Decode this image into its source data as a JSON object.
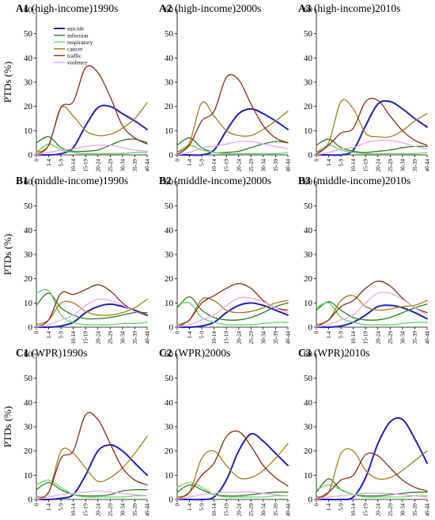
{
  "figure": {
    "x_categories": [
      "0",
      "1-4",
      "5-9",
      "10-14",
      "15-19",
      "20-24",
      "25-29",
      "30-34",
      "35-39",
      "40-44"
    ],
    "ylim": [
      0,
      60
    ],
    "yticks": [
      0,
      10,
      20,
      30,
      40,
      50,
      60
    ],
    "ylabel": "PTDs (%)",
    "series_colors": {
      "suicide": "#1f1fbf",
      "infection": "#2d7d1f",
      "respiratory": "#5fd65f",
      "cancer": "#a37c1a",
      "traffic": "#8b2a1a",
      "violence": "#e6a6e6"
    }
  },
  "chart_data": [
    {
      "type": "line",
      "id": "A1",
      "title_bold": "A1",
      "title": " (high-income)1990s",
      "ylabel": "PTDs (%)",
      "categories": [
        "0",
        "1-4",
        "5-9",
        "10-14",
        "15-19",
        "20-24",
        "25-29",
        "30-34",
        "35-39",
        "40-44"
      ],
      "ylim": [
        0,
        60
      ],
      "legend": "top-left",
      "series": [
        {
          "name": "suicide",
          "values": [
            0,
            0,
            0.5,
            3,
            12,
            19.5,
            20,
            17,
            14,
            10.5
          ]
        },
        {
          "name": "infection",
          "values": [
            5,
            7.5,
            3,
            1.5,
            1.5,
            2,
            4,
            6,
            6.5,
            5
          ]
        },
        {
          "name": "respiratory",
          "values": [
            1,
            4.5,
            2,
            1,
            0.5,
            0.5,
            0.5,
            0.5,
            1,
            1
          ]
        },
        {
          "name": "cancer",
          "values": [
            1,
            4,
            19.5,
            16,
            10,
            8,
            8.5,
            11,
            15,
            21.5
          ]
        },
        {
          "name": "traffic",
          "values": [
            0,
            4,
            19.5,
            22,
            36,
            34,
            24,
            12,
            7,
            4.5
          ]
        },
        {
          "name": "violence",
          "values": [
            0,
            1,
            2,
            2.5,
            3.5,
            4,
            4,
            3,
            2,
            1.5
          ]
        }
      ]
    },
    {
      "type": "line",
      "id": "A2",
      "title_bold": "A2",
      "title": " (high-income)2000s",
      "ylabel": "",
      "categories": [
        "0",
        "1-4",
        "5-9",
        "10-14",
        "15-19",
        "20-24",
        "25-29",
        "30-34",
        "35-39",
        "40-44"
      ],
      "ylim": [
        0,
        60
      ],
      "series": [
        {
          "name": "suicide",
          "values": [
            0,
            0,
            0,
            2,
            10,
            17,
            19,
            17,
            14,
            10.5
          ]
        },
        {
          "name": "infection",
          "values": [
            4,
            7,
            3,
            1,
            1,
            1.5,
            3,
            4.5,
            5.5,
            5
          ]
        },
        {
          "name": "respiratory",
          "values": [
            1,
            4,
            2,
            1,
            0.5,
            0.5,
            0.5,
            0.5,
            0.5,
            1
          ]
        },
        {
          "name": "cancer",
          "values": [
            1,
            5,
            21.5,
            16,
            10,
            8,
            8,
            10.5,
            14,
            18
          ]
        },
        {
          "name": "traffic",
          "values": [
            0,
            4,
            14,
            18,
            32,
            31,
            21,
            12,
            7,
            5
          ]
        },
        {
          "name": "violence",
          "values": [
            0,
            1,
            3,
            3.5,
            4.5,
            5.5,
            5.5,
            4.5,
            3.5,
            2.5
          ]
        }
      ]
    },
    {
      "type": "line",
      "id": "A3",
      "title_bold": "A3",
      "title": " (high-income)2010s",
      "ylabel": "",
      "categories": [
        "0",
        "1-4",
        "5-9",
        "10-14",
        "15-19",
        "20-24",
        "25-29",
        "30-34",
        "35-39",
        "40-44"
      ],
      "ylim": [
        0,
        60
      ],
      "series": [
        {
          "name": "suicide",
          "values": [
            0,
            0,
            0,
            2,
            12,
            21,
            22,
            19,
            15,
            11.5
          ]
        },
        {
          "name": "infection",
          "values": [
            4,
            6.5,
            3,
            1.5,
            1,
            1.5,
            2,
            3,
            3.5,
            3.5
          ]
        },
        {
          "name": "respiratory",
          "values": [
            1,
            4,
            2,
            1,
            0.5,
            0.5,
            0.5,
            0.5,
            0.5,
            1
          ]
        },
        {
          "name": "cancer",
          "values": [
            1,
            5,
            22,
            19,
            9,
            7.5,
            7.5,
            10,
            14,
            17
          ]
        },
        {
          "name": "traffic",
          "values": [
            0,
            4,
            9,
            11,
            22,
            22.5,
            16,
            10,
            6,
            4
          ]
        },
        {
          "name": "violence",
          "values": [
            0,
            1,
            2.5,
            3,
            5,
            6,
            6,
            5,
            3.5,
            2.5
          ]
        }
      ]
    },
    {
      "type": "line",
      "id": "B1",
      "title_bold": "B1",
      "title": " (middle-income)1990s",
      "ylabel": "PTDs (%)",
      "categories": [
        "0",
        "1-4",
        "5-9",
        "10-14",
        "15-19",
        "20-24",
        "25-29",
        "30-34",
        "35-39",
        "40-44"
      ],
      "ylim": [
        0,
        60
      ],
      "series": [
        {
          "name": "suicide",
          "values": [
            0,
            0,
            0.5,
            2,
            6,
            8.5,
            9.5,
            8.5,
            7,
            5
          ]
        },
        {
          "name": "infection",
          "values": [
            9,
            14,
            8,
            5,
            3.5,
            3.5,
            4,
            5,
            6,
            6
          ]
        },
        {
          "name": "respiratory",
          "values": [
            14,
            15,
            5,
            2,
            1,
            1,
            1,
            1.5,
            1.5,
            2
          ]
        },
        {
          "name": "cancer",
          "values": [
            1,
            3,
            10,
            10,
            6.5,
            5,
            5,
            6,
            8,
            11.5
          ]
        },
        {
          "name": "traffic",
          "values": [
            0,
            3,
            14,
            13.5,
            15.5,
            17.5,
            15,
            10,
            6.5,
            5
          ]
        },
        {
          "name": "violence",
          "values": [
            0,
            1,
            3,
            5,
            9,
            11.5,
            11,
            9,
            6.5,
            4.5
          ]
        }
      ]
    },
    {
      "type": "line",
      "id": "B2",
      "title_bold": "B2",
      "title": " (middle-income)2000s",
      "ylabel": "",
      "categories": [
        "0",
        "1-4",
        "5-9",
        "10-14",
        "15-19",
        "20-24",
        "25-29",
        "30-34",
        "35-39",
        "40-44"
      ],
      "ylim": [
        0,
        60
      ],
      "series": [
        {
          "name": "suicide",
          "values": [
            0,
            0,
            0.5,
            2,
            6,
            9,
            10,
            9,
            7,
            5
          ]
        },
        {
          "name": "infection",
          "values": [
            8,
            12.5,
            7,
            4,
            3,
            3,
            4,
            6,
            8.5,
            10
          ]
        },
        {
          "name": "respiratory",
          "values": [
            9,
            10,
            4,
            2,
            1,
            1,
            1,
            1.5,
            2,
            2
          ]
        },
        {
          "name": "cancer",
          "values": [
            1,
            3,
            11.5,
            11,
            7,
            6,
            6.5,
            8,
            10,
            11
          ]
        },
        {
          "name": "traffic",
          "values": [
            0,
            3,
            10,
            13,
            16,
            18,
            16,
            11,
            8,
            7
          ]
        },
        {
          "name": "violence",
          "values": [
            0,
            1,
            3,
            5,
            9,
            12,
            12,
            10.5,
            8,
            6
          ]
        }
      ]
    },
    {
      "type": "line",
      "id": "B3",
      "title_bold": "B3",
      "title": " (middle-income)2010s",
      "ylabel": "",
      "categories": [
        "0",
        "1-4",
        "5-9",
        "10-14",
        "15-19",
        "20-24",
        "25-29",
        "30-34",
        "35-39",
        "40-44"
      ],
      "ylim": [
        0,
        60
      ],
      "series": [
        {
          "name": "suicide",
          "values": [
            0,
            0,
            0.5,
            2,
            5,
            8.5,
            9,
            8,
            6,
            3.5
          ]
        },
        {
          "name": "infection",
          "values": [
            7,
            10.5,
            7,
            4,
            3,
            3,
            4,
            6,
            8,
            9.5
          ]
        },
        {
          "name": "respiratory",
          "values": [
            8,
            10,
            4,
            2,
            1,
            1,
            1,
            1.5,
            2,
            2
          ]
        },
        {
          "name": "cancer",
          "values": [
            1,
            3,
            11,
            13,
            8.5,
            7,
            7.5,
            8.5,
            9,
            11
          ]
        },
        {
          "name": "traffic",
          "values": [
            0,
            3,
            8.5,
            11,
            16,
            19,
            17,
            12,
            8,
            6
          ]
        },
        {
          "name": "violence",
          "values": [
            0,
            1,
            3,
            5,
            10,
            14,
            14,
            11.5,
            8,
            5
          ]
        }
      ]
    },
    {
      "type": "line",
      "id": "C1",
      "title_bold": "C1",
      "title": " (WPR)1990s",
      "ylabel": "PTDs (%)",
      "categories": [
        "0",
        "1-4",
        "5-9",
        "10-14",
        "15-19",
        "20-24",
        "25-29",
        "30-34",
        "35-39",
        "40-44"
      ],
      "ylim": [
        0,
        60
      ],
      "series": [
        {
          "name": "suicide",
          "values": [
            0,
            0,
            0.5,
            2,
            10,
            20,
            22.5,
            20,
            15,
            10
          ]
        },
        {
          "name": "infection",
          "values": [
            4,
            7,
            4,
            2,
            1.5,
            1.5,
            2,
            3.5,
            4,
            4
          ]
        },
        {
          "name": "respiratory",
          "values": [
            6,
            8,
            5,
            2,
            1,
            1,
            1,
            1,
            1.5,
            1.5
          ]
        },
        {
          "name": "cancer",
          "values": [
            1,
            3,
            20,
            19,
            13,
            7.5,
            9,
            13,
            19,
            26
          ]
        },
        {
          "name": "traffic",
          "values": [
            0,
            3,
            17,
            20,
            35,
            33,
            23,
            13,
            8,
            6
          ]
        },
        {
          "name": "violence",
          "values": [
            0,
            1,
            2,
            2.5,
            3,
            3.5,
            3,
            2.5,
            2,
            1.5
          ]
        }
      ]
    },
    {
      "type": "line",
      "id": "C2",
      "title_bold": "C2",
      "title": " (WPR)2000s",
      "ylabel": "",
      "categories": [
        "0",
        "1-4",
        "5-9",
        "10-14",
        "15-19",
        "20-24",
        "25-29",
        "30-34",
        "35-39",
        "40-44"
      ],
      "ylim": [
        0,
        60
      ],
      "series": [
        {
          "name": "suicide",
          "values": [
            0,
            0,
            0,
            1,
            8,
            20,
            27,
            24,
            19,
            14
          ]
        },
        {
          "name": "infection",
          "values": [
            3,
            6,
            4,
            2,
            1.5,
            1.5,
            2,
            2.5,
            3,
            3
          ]
        },
        {
          "name": "respiratory",
          "values": [
            5,
            7,
            5,
            2,
            1,
            1,
            1,
            1,
            1.5,
            1.5
          ]
        },
        {
          "name": "cancer",
          "values": [
            1,
            3,
            17,
            20,
            14,
            9,
            9,
            12,
            17,
            23
          ]
        },
        {
          "name": "traffic",
          "values": [
            0,
            3,
            10,
            15,
            26,
            28,
            22,
            14,
            9,
            5.5
          ]
        },
        {
          "name": "violence",
          "values": [
            0,
            1,
            2,
            2.5,
            3,
            3,
            3,
            2.5,
            2,
            1.5
          ]
        }
      ]
    },
    {
      "type": "line",
      "id": "C3",
      "title_bold": "C3",
      "title": " (WPR)2010s",
      "ylabel": "",
      "categories": [
        "0",
        "1-4",
        "5-9",
        "10-14",
        "15-19",
        "20-24",
        "25-29",
        "30-34",
        "35-39",
        "40-44"
      ],
      "ylim": [
        0,
        60
      ],
      "series": [
        {
          "name": "suicide",
          "values": [
            0,
            0,
            0,
            1,
            9,
            23,
            32,
            33,
            25,
            15
          ]
        },
        {
          "name": "infection",
          "values": [
            3,
            8.5,
            4,
            2,
            1.5,
            1.5,
            2,
            2.5,
            3,
            3
          ]
        },
        {
          "name": "respiratory",
          "values": [
            4,
            6,
            4,
            2,
            1,
            1,
            1,
            1,
            1.5,
            1.5
          ]
        },
        {
          "name": "cancer",
          "values": [
            1,
            3,
            19,
            20,
            12,
            8.5,
            9,
            12,
            16,
            20
          ]
        },
        {
          "name": "traffic",
          "values": [
            0,
            3,
            8,
            10,
            18.5,
            18,
            13,
            8,
            5,
            3.5
          ]
        },
        {
          "name": "violence",
          "values": [
            0,
            1,
            1.5,
            2,
            2.5,
            2.5,
            2.5,
            2,
            1.5,
            1
          ]
        }
      ]
    }
  ]
}
